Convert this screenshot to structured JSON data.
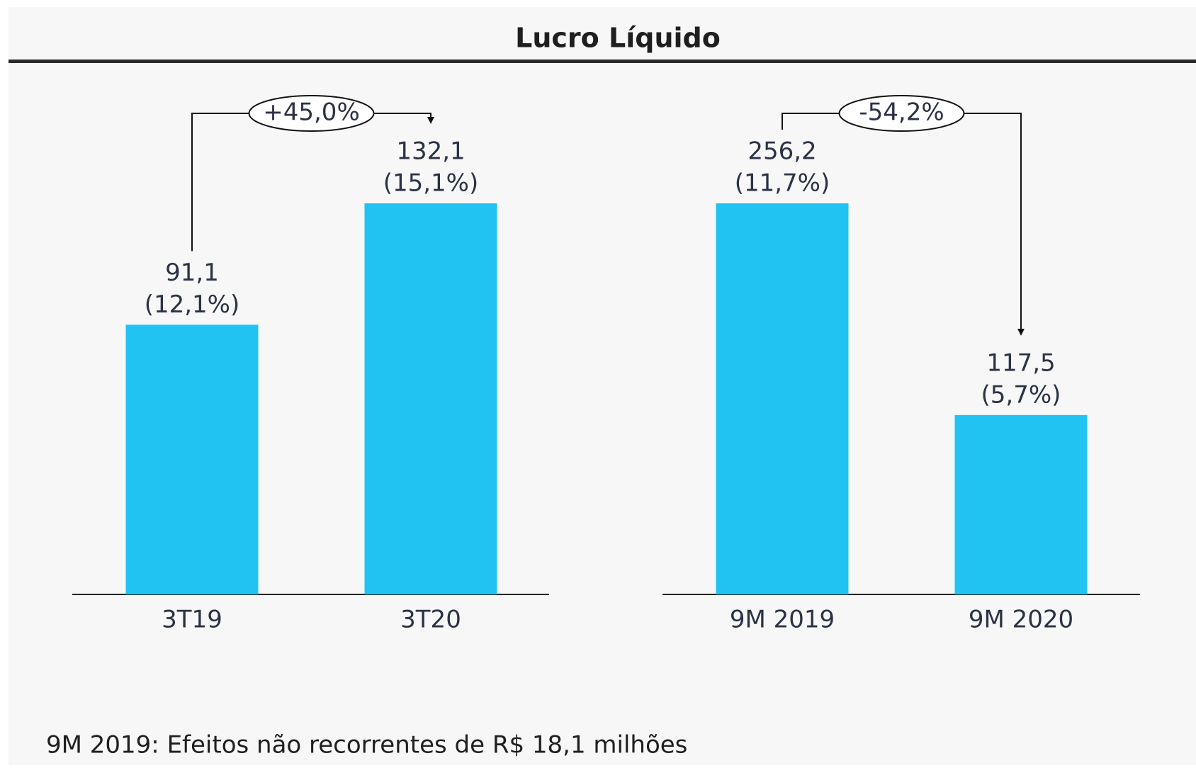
{
  "title": "Lucro Líquido",
  "chart_data": [
    {
      "type": "bar",
      "categories": [
        "3T19",
        "3T20"
      ],
      "values": [
        91.1,
        132.1
      ],
      "value_labels": [
        "91,1",
        "132,1"
      ],
      "margins": [
        12.1,
        15.1
      ],
      "margin_labels": [
        "(12,1%)",
        "(15,1%)"
      ],
      "color": "#21c3f3",
      "change": 45.0,
      "change_label": "+45,0%"
    },
    {
      "type": "bar",
      "categories": [
        "9M 2019",
        "9M 2020"
      ],
      "values": [
        256.2,
        117.5
      ],
      "value_labels": [
        "256,2",
        "117,5"
      ],
      "margins": [
        11.7,
        5.7
      ],
      "margin_labels": [
        "(11,7%)",
        "(5,7%)"
      ],
      "color": "#21c3f3",
      "change": -54.2,
      "change_label": "-54,2%"
    }
  ],
  "footnote": "9M 2019: Efeitos não recorrentes de R$ 18,1 milhões"
}
